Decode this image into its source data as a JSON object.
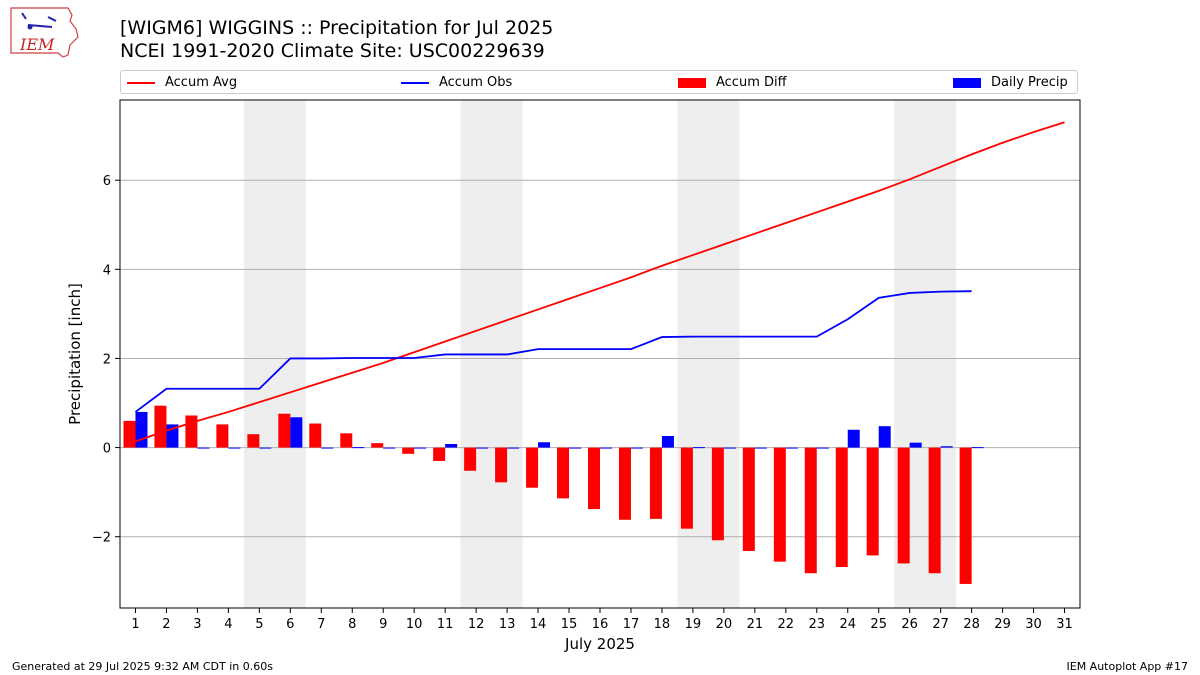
{
  "header": {
    "title_line1": "[WIGM6] WIGGINS :: Precipitation for Jul 2025",
    "title_line2": "NCEI 1991-2020 Climate Site: USC00229639"
  },
  "logo": {
    "text": "IEM"
  },
  "footer": {
    "generated": "Generated at 29 Jul 2025 9:32 AM CDT in 0.60s",
    "app": "IEM Autoplot App #17"
  },
  "colors": {
    "avg": "#ff0000",
    "obs": "#0000ff",
    "diff": "#ff0000",
    "daily": "#0000ff",
    "weekend": "#eeeeee",
    "grid": "#b0b0b0"
  },
  "chart_data": {
    "type": "bar",
    "xlabel": "July 2025",
    "ylabel": "Precipitation [inch]",
    "xlim": [
      0.5,
      31.5
    ],
    "ylim": [
      -3.6,
      7.8
    ],
    "yticks": [
      -2,
      0,
      2,
      4,
      6
    ],
    "ytick_labels": [
      "−2",
      "0",
      "2",
      "4",
      "6"
    ],
    "days": [
      1,
      2,
      3,
      4,
      5,
      6,
      7,
      8,
      9,
      10,
      11,
      12,
      13,
      14,
      15,
      16,
      17,
      18,
      19,
      20,
      21,
      22,
      23,
      24,
      25,
      26,
      27,
      28,
      29,
      30,
      31
    ],
    "day_labels": [
      "1",
      "2",
      "3",
      "4",
      "5",
      "6",
      "7",
      "8",
      "9",
      "10",
      "11",
      "12",
      "13",
      "14",
      "15",
      "16",
      "17",
      "18",
      "19",
      "20",
      "21",
      "22",
      "23",
      "24",
      "25",
      "26",
      "27",
      "28",
      "29",
      "30",
      "31"
    ],
    "weekend_spans": [
      [
        4.5,
        6.5
      ],
      [
        11.5,
        13.5
      ],
      [
        18.5,
        20.5
      ],
      [
        25.5,
        27.5
      ]
    ],
    "grid": "horizontal",
    "legend_position": "top",
    "series": [
      {
        "name": "Accum Avg",
        "kind": "line",
        "values": [
          0.14,
          0.38,
          0.6,
          0.8,
          1.02,
          1.24,
          1.46,
          1.68,
          1.9,
          2.14,
          2.38,
          2.62,
          2.86,
          3.1,
          3.34,
          3.58,
          3.82,
          4.08,
          4.32,
          4.56,
          4.8,
          5.04,
          5.28,
          5.52,
          5.76,
          6.02,
          6.3,
          6.58,
          6.84,
          7.08,
          7.3
        ]
      },
      {
        "name": "Accum Obs",
        "kind": "line",
        "values": [
          0.8,
          1.32,
          1.32,
          1.32,
          1.32,
          2.0,
          2.0,
          2.01,
          2.01,
          2.01,
          2.09,
          2.09,
          2.09,
          2.21,
          2.21,
          2.21,
          2.21,
          2.48,
          2.49,
          2.49,
          2.49,
          2.49,
          2.49,
          2.88,
          3.36,
          3.47,
          3.5,
          3.51
        ]
      },
      {
        "name": "Accum Diff",
        "kind": "bar",
        "values": [
          0.6,
          0.94,
          0.72,
          0.52,
          0.3,
          0.76,
          0.54,
          0.32,
          0.1,
          -0.14,
          -0.3,
          -0.52,
          -0.78,
          -0.9,
          -1.14,
          -1.38,
          -1.62,
          -1.6,
          -1.82,
          -2.08,
          -2.32,
          -2.56,
          -2.82,
          -2.68,
          -2.42,
          -2.6,
          -2.82,
          -3.06
        ]
      },
      {
        "name": "Daily Precip",
        "kind": "bar",
        "values": [
          0.8,
          0.52,
          0,
          0,
          0,
          0.68,
          0,
          0.01,
          0,
          0,
          0.08,
          0,
          0,
          0.12,
          0,
          0,
          0,
          0.26,
          0.01,
          0,
          0,
          0,
          0,
          0.4,
          0.48,
          0.11,
          0.03,
          0.01
        ]
      }
    ]
  }
}
